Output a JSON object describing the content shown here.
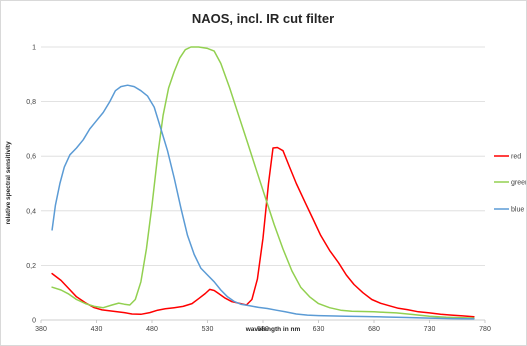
{
  "chart_data": {
    "type": "line",
    "title": "NAOS, incl. IR cut filter",
    "xlabel": "wavelength in nm",
    "ylabel": "relative spectral sensitivity",
    "xlim": [
      380,
      780
    ],
    "ylim": [
      0,
      1
    ],
    "x_ticks": [
      "380",
      "430",
      "480",
      "530",
      "580",
      "630",
      "680",
      "730",
      "780"
    ],
    "y_ticks": [
      "0",
      "0,2",
      "0,4",
      "0,6",
      "0,8",
      "1"
    ],
    "grid": "horizontal",
    "legend_position": "right",
    "series": [
      {
        "name": "red",
        "color": "#ff0000",
        "points": [
          [
            390,
            0.17
          ],
          [
            398,
            0.145
          ],
          [
            405,
            0.115
          ],
          [
            412,
            0.085
          ],
          [
            420,
            0.063
          ],
          [
            428,
            0.045
          ],
          [
            435,
            0.037
          ],
          [
            445,
            0.032
          ],
          [
            455,
            0.027
          ],
          [
            462,
            0.022
          ],
          [
            470,
            0.021
          ],
          [
            478,
            0.027
          ],
          [
            485,
            0.036
          ],
          [
            492,
            0.041
          ],
          [
            500,
            0.045
          ],
          [
            508,
            0.05
          ],
          [
            516,
            0.06
          ],
          [
            522,
            0.078
          ],
          [
            528,
            0.097
          ],
          [
            532,
            0.112
          ],
          [
            536,
            0.108
          ],
          [
            540,
            0.097
          ],
          [
            546,
            0.08
          ],
          [
            552,
            0.067
          ],
          [
            558,
            0.062
          ],
          [
            565,
            0.055
          ],
          [
            570,
            0.075
          ],
          [
            575,
            0.15
          ],
          [
            580,
            0.3
          ],
          [
            585,
            0.5
          ],
          [
            589,
            0.63
          ],
          [
            593,
            0.632
          ],
          [
            598,
            0.62
          ],
          [
            604,
            0.56
          ],
          [
            610,
            0.5
          ],
          [
            618,
            0.43
          ],
          [
            625,
            0.37
          ],
          [
            632,
            0.31
          ],
          [
            640,
            0.255
          ],
          [
            648,
            0.21
          ],
          [
            655,
            0.165
          ],
          [
            662,
            0.13
          ],
          [
            670,
            0.1
          ],
          [
            678,
            0.075
          ],
          [
            686,
            0.061
          ],
          [
            694,
            0.052
          ],
          [
            702,
            0.043
          ],
          [
            710,
            0.038
          ],
          [
            720,
            0.03
          ],
          [
            730,
            0.026
          ],
          [
            740,
            0.021
          ],
          [
            750,
            0.018
          ],
          [
            760,
            0.015
          ],
          [
            770,
            0.012
          ]
        ]
      },
      {
        "name": "green",
        "color": "#92d050",
        "points": [
          [
            390,
            0.12
          ],
          [
            398,
            0.11
          ],
          [
            405,
            0.095
          ],
          [
            412,
            0.075
          ],
          [
            420,
            0.06
          ],
          [
            428,
            0.05
          ],
          [
            436,
            0.045
          ],
          [
            444,
            0.055
          ],
          [
            450,
            0.062
          ],
          [
            455,
            0.058
          ],
          [
            460,
            0.055
          ],
          [
            465,
            0.075
          ],
          [
            470,
            0.14
          ],
          [
            475,
            0.26
          ],
          [
            480,
            0.42
          ],
          [
            485,
            0.6
          ],
          [
            490,
            0.75
          ],
          [
            495,
            0.85
          ],
          [
            500,
            0.91
          ],
          [
            505,
            0.96
          ],
          [
            510,
            0.99
          ],
          [
            515,
            1.0
          ],
          [
            522,
            1.0
          ],
          [
            530,
            0.995
          ],
          [
            536,
            0.985
          ],
          [
            542,
            0.94
          ],
          [
            550,
            0.85
          ],
          [
            558,
            0.75
          ],
          [
            566,
            0.65
          ],
          [
            574,
            0.55
          ],
          [
            582,
            0.45
          ],
          [
            590,
            0.35
          ],
          [
            598,
            0.26
          ],
          [
            606,
            0.18
          ],
          [
            614,
            0.12
          ],
          [
            622,
            0.085
          ],
          [
            630,
            0.06
          ],
          [
            640,
            0.045
          ],
          [
            650,
            0.036
          ],
          [
            660,
            0.032
          ],
          [
            670,
            0.031
          ],
          [
            680,
            0.03
          ],
          [
            690,
            0.028
          ],
          [
            700,
            0.026
          ],
          [
            715,
            0.02
          ],
          [
            730,
            0.014
          ],
          [
            745,
            0.01
          ],
          [
            760,
            0.008
          ],
          [
            770,
            0.007
          ]
        ]
      },
      {
        "name": "blue",
        "color": "#5b9bd5",
        "points": [
          [
            390,
            0.33
          ],
          [
            393,
            0.42
          ],
          [
            397,
            0.5
          ],
          [
            401,
            0.56
          ],
          [
            406,
            0.605
          ],
          [
            412,
            0.63
          ],
          [
            418,
            0.66
          ],
          [
            424,
            0.7
          ],
          [
            430,
            0.73
          ],
          [
            436,
            0.76
          ],
          [
            442,
            0.8
          ],
          [
            447,
            0.84
          ],
          [
            452,
            0.855
          ],
          [
            458,
            0.86
          ],
          [
            464,
            0.855
          ],
          [
            470,
            0.84
          ],
          [
            476,
            0.82
          ],
          [
            482,
            0.78
          ],
          [
            488,
            0.7
          ],
          [
            494,
            0.62
          ],
          [
            500,
            0.52
          ],
          [
            506,
            0.41
          ],
          [
            512,
            0.31
          ],
          [
            518,
            0.24
          ],
          [
            524,
            0.19
          ],
          [
            530,
            0.165
          ],
          [
            536,
            0.14
          ],
          [
            542,
            0.11
          ],
          [
            548,
            0.085
          ],
          [
            554,
            0.068
          ],
          [
            560,
            0.058
          ],
          [
            568,
            0.052
          ],
          [
            576,
            0.046
          ],
          [
            584,
            0.042
          ],
          [
            592,
            0.036
          ],
          [
            600,
            0.03
          ],
          [
            610,
            0.022
          ],
          [
            620,
            0.018
          ],
          [
            630,
            0.016
          ],
          [
            640,
            0.015
          ],
          [
            655,
            0.014
          ],
          [
            670,
            0.013
          ],
          [
            690,
            0.011
          ],
          [
            710,
            0.009
          ],
          [
            730,
            0.007
          ],
          [
            750,
            0.005
          ],
          [
            770,
            0.004
          ]
        ]
      }
    ]
  }
}
